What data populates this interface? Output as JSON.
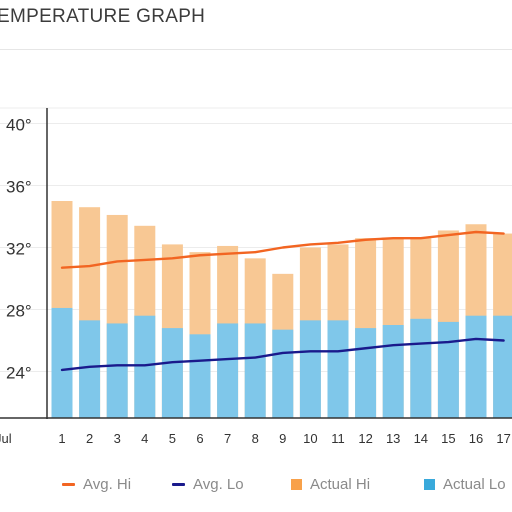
{
  "page": {
    "title": "EMPERATURE GRAPH"
  },
  "chart_data": {
    "type": "bar",
    "y_ticks": [
      "40°",
      "36°",
      "32°",
      "28°",
      "24°"
    ],
    "y_tick_values": [
      40,
      36,
      32,
      28,
      24
    ],
    "ylim": [
      21,
      41
    ],
    "x_axis_start_label": "Jul",
    "categories": [
      "1",
      "2",
      "3",
      "4",
      "5",
      "6",
      "7",
      "8",
      "9",
      "10",
      "11",
      "12",
      "13",
      "14",
      "15",
      "16",
      "17"
    ],
    "series": [
      {
        "name": "Actual Hi",
        "kind": "bar",
        "color": "#f8c894",
        "values": [
          35.0,
          34.6,
          34.1,
          33.4,
          32.2,
          31.7,
          32.1,
          31.3,
          30.3,
          32.0,
          32.2,
          32.6,
          32.6,
          32.6,
          33.1,
          33.5,
          32.9
        ]
      },
      {
        "name": "Actual Lo",
        "kind": "bar",
        "color": "#7fc7ea",
        "values": [
          28.1,
          27.3,
          27.1,
          27.6,
          26.8,
          26.4,
          27.1,
          27.1,
          26.7,
          27.3,
          27.3,
          26.8,
          27.0,
          27.4,
          27.2,
          27.6,
          27.6
        ]
      },
      {
        "name": "Avg. Hi",
        "kind": "line",
        "color": "#f26522",
        "values": [
          30.7,
          30.8,
          31.1,
          31.2,
          31.3,
          31.5,
          31.6,
          31.7,
          32.0,
          32.2,
          32.3,
          32.5,
          32.6,
          32.6,
          32.8,
          33.0,
          32.9
        ]
      },
      {
        "name": "Avg. Lo",
        "kind": "line",
        "color": "#1a1a8c",
        "values": [
          24.1,
          24.3,
          24.4,
          24.4,
          24.6,
          24.7,
          24.8,
          24.9,
          25.2,
          25.3,
          25.3,
          25.5,
          25.7,
          25.8,
          25.9,
          26.1,
          26.0
        ]
      }
    ],
    "legend": {
      "placement": "bottom",
      "items": [
        {
          "label": "Avg. Hi",
          "marker": "line",
          "color": "#f26522"
        },
        {
          "label": "Avg. Lo",
          "marker": "line",
          "color": "#1a1a8c"
        },
        {
          "label": "Actual Hi",
          "marker": "box",
          "color": "#f8a14a"
        },
        {
          "label": "Actual Lo",
          "marker": "box",
          "color": "#39a9db"
        }
      ]
    },
    "grid": true
  }
}
